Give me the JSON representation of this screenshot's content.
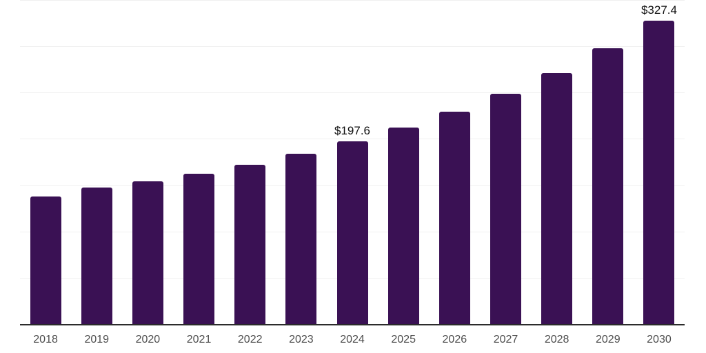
{
  "chart_data": {
    "type": "bar",
    "title": "",
    "xlabel": "",
    "ylabel": "",
    "categories": [
      "2018",
      "2019",
      "2020",
      "2021",
      "2022",
      "2023",
      "2024",
      "2025",
      "2026",
      "2027",
      "2028",
      "2029",
      "2030"
    ],
    "values": [
      137.9,
      147.2,
      153.9,
      162.3,
      172.0,
      183.9,
      197.6,
      212.1,
      229.5,
      249.0,
      271.2,
      297.6,
      327.4
    ],
    "bar_labels": [
      "",
      "",
      "",
      "",
      "",
      "",
      "$197.6",
      "",
      "",
      "",
      "",
      "",
      "$327.4"
    ],
    "labeled_points": [
      {
        "category": "2024",
        "label": "$197.6"
      },
      {
        "category": "2030",
        "label": "$327.4"
      }
    ],
    "ylim": [
      0,
      350
    ],
    "gridline_step": 50,
    "grid": true,
    "legend": false,
    "y_tick_labels_visible": false,
    "colors": {
      "bar": "#3a1154",
      "gridline": "#f0f0f0",
      "axis_line": "#2b2b2b",
      "tick_label": "#4d4d4d",
      "data_label": "#111111"
    }
  }
}
